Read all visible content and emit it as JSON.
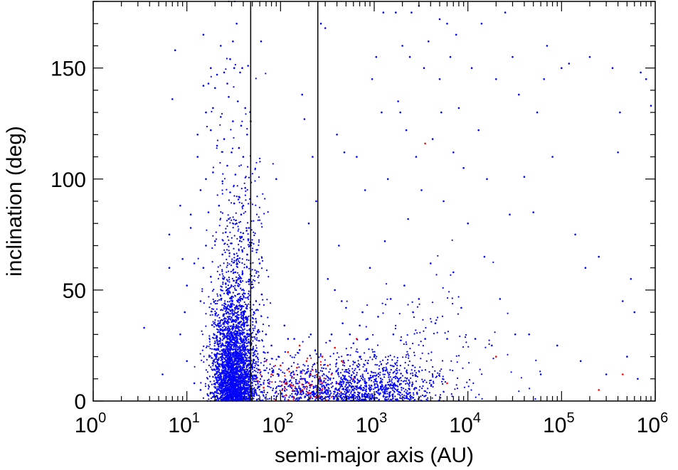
{
  "chart_data": {
    "type": "scatter",
    "title": "",
    "xlabel": "semi-major axis (AU)",
    "ylabel": "inclination (deg)",
    "x_scale": "log",
    "xlim": [
      1,
      1000000
    ],
    "ylim": [
      0,
      180
    ],
    "x_ticks": [
      {
        "base": "10",
        "exp": "0",
        "value": 1
      },
      {
        "base": "10",
        "exp": "1",
        "value": 10
      },
      {
        "base": "10",
        "exp": "2",
        "value": 100
      },
      {
        "base": "10",
        "exp": "3",
        "value": 1000
      },
      {
        "base": "10",
        "exp": "4",
        "value": 10000
      },
      {
        "base": "10",
        "exp": "5",
        "value": 100000
      },
      {
        "base": "10",
        "exp": "6",
        "value": 1000000
      }
    ],
    "y_ticks": [
      {
        "label": "0",
        "value": 0
      },
      {
        "label": "50",
        "value": 50
      },
      {
        "label": "100",
        "value": 100
      },
      {
        "label": "150",
        "value": 150
      }
    ],
    "grid": false,
    "legend": "none",
    "vertical_lines": [
      {
        "x": 48,
        "color": "#000000"
      },
      {
        "x": 250,
        "color": "#000000"
      }
    ],
    "series": [
      {
        "color": "#0000ff",
        "marker": "dot",
        "points": [
          [
            3.5,
            33
          ],
          [
            5.5,
            12
          ],
          [
            6.5,
            60
          ],
          [
            6.5,
            75
          ],
          [
            7,
            136
          ],
          [
            7.5,
            158
          ],
          [
            8.5,
            30
          ],
          [
            8.5,
            88
          ],
          [
            9,
            64
          ],
          [
            9.5,
            40
          ],
          [
            10,
            18
          ],
          [
            10,
            52
          ],
          [
            11,
            84
          ],
          [
            11,
            78
          ],
          [
            12,
            62
          ],
          [
            12,
            8
          ],
          [
            13,
            110
          ],
          [
            13,
            120
          ],
          [
            14,
            95
          ],
          [
            14,
            45
          ],
          [
            14,
            5
          ],
          [
            15,
            60
          ],
          [
            15,
            142
          ],
          [
            15,
            165
          ],
          [
            16,
            130
          ],
          [
            16,
            100
          ],
          [
            16,
            70
          ],
          [
            17,
            143
          ],
          [
            17,
            85
          ],
          [
            18,
            150
          ],
          [
            18,
            122
          ],
          [
            18,
            56
          ],
          [
            19,
            132
          ],
          [
            19,
            103
          ],
          [
            20,
            72
          ],
          [
            20,
            141
          ],
          [
            21,
            115
          ],
          [
            21,
            147
          ],
          [
            22,
            35
          ],
          [
            22,
            88
          ],
          [
            23,
            160
          ],
          [
            23,
            128
          ],
          [
            24,
            99
          ],
          [
            24,
            66
          ],
          [
            25,
            148
          ],
          [
            25,
            118
          ],
          [
            26,
            76
          ],
          [
            26,
            53
          ],
          [
            27,
            143
          ],
          [
            27,
            106
          ],
          [
            28,
            137
          ],
          [
            28,
            82
          ],
          [
            29,
            154
          ],
          [
            29,
            94
          ],
          [
            30,
            112
          ],
          [
            30,
            71
          ],
          [
            31,
            162
          ],
          [
            31,
            126
          ],
          [
            32,
            150
          ],
          [
            32,
            89
          ],
          [
            33,
            58
          ],
          [
            33,
            102
          ],
          [
            34,
            170
          ],
          [
            34,
            80
          ],
          [
            35,
            135
          ],
          [
            35,
            64
          ],
          [
            36,
            114
          ],
          [
            36,
            92
          ],
          [
            37,
            148
          ],
          [
            37,
            74
          ],
          [
            38,
            124
          ],
          [
            38,
            84
          ],
          [
            39,
            150
          ],
          [
            39,
            68
          ],
          [
            40,
            110
          ],
          [
            40,
            88
          ],
          [
            42,
            132
          ],
          [
            42,
            96
          ],
          [
            44,
            120
          ],
          [
            44,
            66
          ],
          [
            45,
            151
          ],
          [
            46,
            78
          ],
          [
            48,
            126
          ],
          [
            48,
            62
          ],
          [
            52,
            40
          ],
          [
            55,
            30
          ],
          [
            58,
            32
          ],
          [
            60,
            62
          ],
          [
            62,
            162
          ],
          [
            63,
            48
          ],
          [
            66,
            22
          ],
          [
            70,
            30
          ],
          [
            80,
            25
          ],
          [
            90,
            100
          ],
          [
            95,
            20
          ],
          [
            110,
            34
          ],
          [
            120,
            28
          ],
          [
            140,
            28
          ],
          [
            160,
            23
          ],
          [
            170,
            138
          ],
          [
            180,
            127
          ],
          [
            200,
            80
          ],
          [
            210,
            30
          ],
          [
            220,
            110
          ],
          [
            240,
            90
          ],
          [
            270,
            170
          ],
          [
            300,
            168
          ],
          [
            320,
            55
          ],
          [
            350,
            30
          ],
          [
            380,
            50
          ],
          [
            400,
            120
          ],
          [
            420,
            70
          ],
          [
            450,
            45
          ],
          [
            460,
            35
          ],
          [
            480,
            112
          ],
          [
            500,
            42
          ],
          [
            550,
            30
          ],
          [
            600,
            26
          ],
          [
            650,
            110
          ],
          [
            700,
            34
          ],
          [
            750,
            40
          ],
          [
            800,
            95
          ],
          [
            850,
            28
          ],
          [
            900,
            60
          ],
          [
            950,
            145
          ],
          [
            1000,
            20
          ],
          [
            1050,
            155
          ],
          [
            1100,
            38
          ],
          [
            1200,
            130
          ],
          [
            1250,
            175
          ],
          [
            1300,
            72
          ],
          [
            1400,
            100
          ],
          [
            1500,
            46
          ],
          [
            1600,
            30
          ],
          [
            1700,
            175
          ],
          [
            1800,
            135
          ],
          [
            1900,
            130
          ],
          [
            2000,
            160
          ],
          [
            2100,
            52
          ],
          [
            2200,
            122
          ],
          [
            2300,
            82
          ],
          [
            2400,
            155
          ],
          [
            2500,
            175
          ],
          [
            2600,
            40
          ],
          [
            2800,
            110
          ],
          [
            3000,
            178
          ],
          [
            3000,
            46
          ],
          [
            3200,
            95
          ],
          [
            3400,
            150
          ],
          [
            3500,
            28
          ],
          [
            3800,
            162
          ],
          [
            4000,
            62
          ],
          [
            4200,
            118
          ],
          [
            4500,
            35
          ],
          [
            5000,
            172
          ],
          [
            5000,
            145
          ],
          [
            5200,
            130
          ],
          [
            5500,
            90
          ],
          [
            6000,
            170
          ],
          [
            6000,
            28
          ],
          [
            6500,
            155
          ],
          [
            7000,
            112
          ],
          [
            7000,
            58
          ],
          [
            7500,
            165
          ],
          [
            8000,
            132
          ],
          [
            8500,
            42
          ],
          [
            9000,
            105
          ],
          [
            10000,
            80
          ],
          [
            11000,
            150
          ],
          [
            12000,
            28
          ],
          [
            13000,
            122
          ],
          [
            14000,
            170
          ],
          [
            15000,
            65
          ],
          [
            16000,
            100
          ],
          [
            18000,
            25
          ],
          [
            20000,
            145
          ],
          [
            22000,
            46
          ],
          [
            25000,
            175
          ],
          [
            28000,
            84
          ],
          [
            30000,
            155
          ],
          [
            32000,
            30
          ],
          [
            35000,
            138
          ],
          [
            40000,
            101
          ],
          [
            45000,
            30
          ],
          [
            50000,
            85
          ],
          [
            55000,
            130
          ],
          [
            60000,
            12
          ],
          [
            65000,
            145
          ],
          [
            70000,
            160
          ],
          [
            80000,
            110
          ],
          [
            90000,
            25
          ],
          [
            100000,
            150
          ],
          [
            120000,
            152
          ],
          [
            140000,
            75
          ],
          [
            160000,
            18
          ],
          [
            180000,
            60
          ],
          [
            200000,
            155
          ],
          [
            250000,
            65
          ],
          [
            300000,
            12
          ],
          [
            350000,
            150
          ],
          [
            400000,
            112
          ],
          [
            420000,
            130
          ],
          [
            450000,
            45
          ],
          [
            500000,
            20
          ],
          [
            550000,
            55
          ],
          [
            600000,
            40
          ],
          [
            650000,
            10
          ],
          [
            700000,
            148
          ],
          [
            800000,
            145
          ],
          [
            900000,
            133
          ]
        ]
      },
      {
        "color": "#ff0000",
        "marker": "dot",
        "points": [
          [
            55,
            10
          ],
          [
            60,
            14
          ],
          [
            66,
            6
          ],
          [
            70,
            18
          ],
          [
            75,
            8
          ],
          [
            80,
            12
          ],
          [
            90,
            4
          ],
          [
            100,
            16
          ],
          [
            110,
            9
          ],
          [
            120,
            22
          ],
          [
            130,
            7
          ],
          [
            140,
            12
          ],
          [
            150,
            15
          ],
          [
            160,
            25
          ],
          [
            170,
            5
          ],
          [
            180,
            10
          ],
          [
            190,
            18
          ],
          [
            200,
            8
          ],
          [
            220,
            14
          ],
          [
            260,
            10
          ],
          [
            280,
            20
          ],
          [
            300,
            6
          ],
          [
            320,
            16
          ],
          [
            350,
            12
          ],
          [
            380,
            24
          ],
          [
            400,
            8
          ],
          [
            450,
            18
          ],
          [
            500,
            14
          ],
          [
            600,
            10
          ],
          [
            650,
            28
          ],
          [
            3500,
            116
          ],
          [
            6000,
            8
          ],
          [
            20000,
            20
          ],
          [
            250000,
            5
          ],
          [
            450000,
            12
          ]
        ]
      }
    ]
  }
}
